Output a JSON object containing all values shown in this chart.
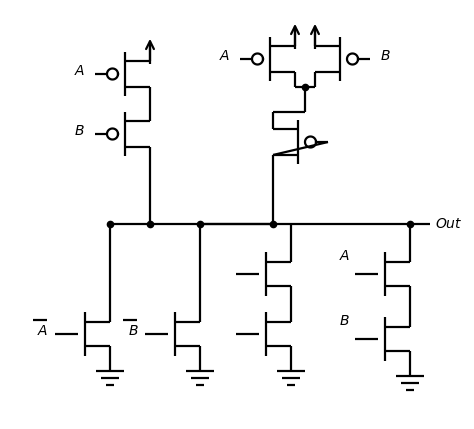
{
  "bg": "#ffffff",
  "lc": "#000000",
  "lw": 1.6,
  "fig_w": 4.74,
  "fig_h": 4.29,
  "xlim": [
    0,
    47.4
  ],
  "ylim": [
    0,
    42.9
  ]
}
